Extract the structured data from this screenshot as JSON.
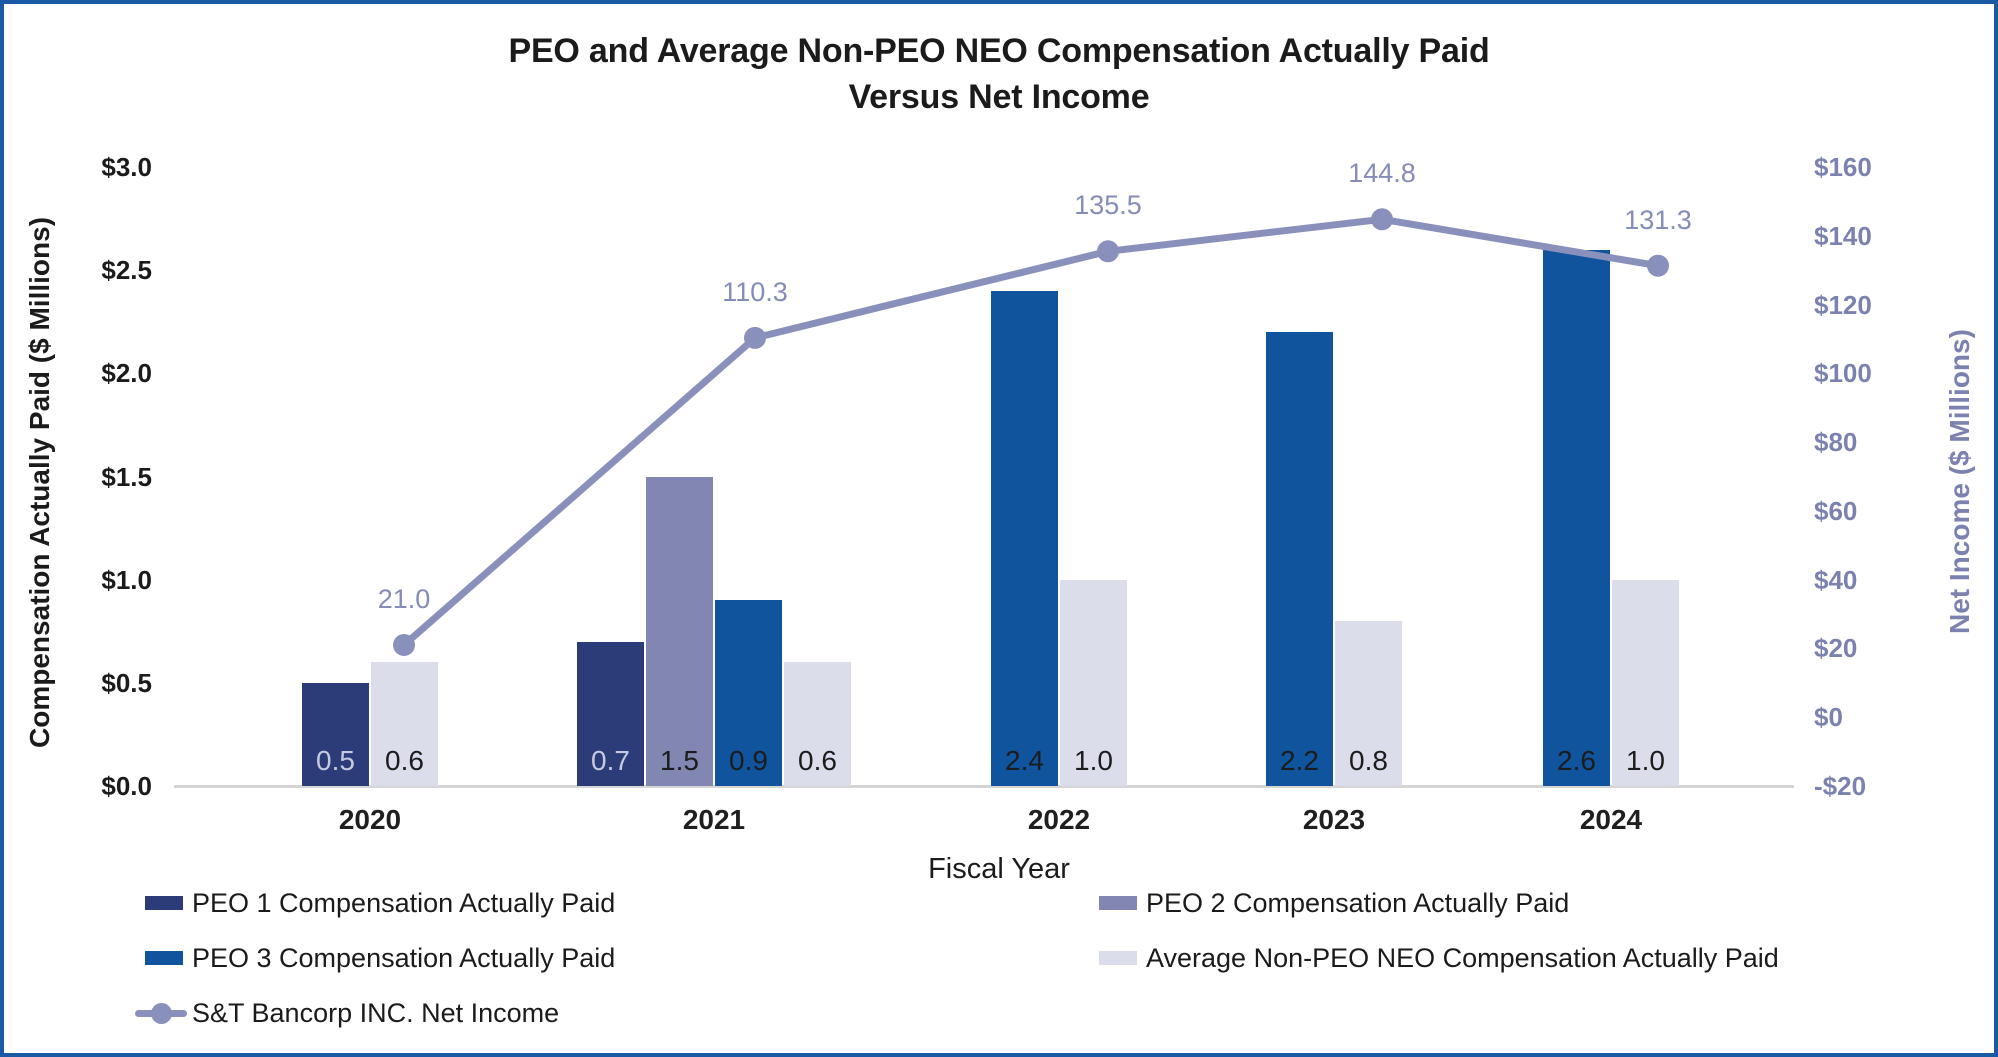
{
  "title": {
    "line1": "PEO and Average Non-PEO NEO Compensation Actually Paid",
    "line2": "Versus Net Income"
  },
  "chart_data": {
    "type": "combo-bar-line",
    "categories": [
      "2020",
      "2021",
      "2022",
      "2023",
      "2024"
    ],
    "xlabel": "Fiscal Year",
    "left_axis": {
      "title": "Compensation Actually Paid ($ Millions)",
      "min": 0.0,
      "max": 3.0,
      "ticks": [
        {
          "label": "$3.0",
          "value": 3.0
        },
        {
          "label": "$2.5",
          "value": 2.5
        },
        {
          "label": "$2.0",
          "value": 2.0
        },
        {
          "label": "$1.5",
          "value": 1.5
        },
        {
          "label": "$1.0",
          "value": 1.0
        },
        {
          "label": "$0.5",
          "value": 0.5
        },
        {
          "label": "$0.0",
          "value": 0.0
        }
      ]
    },
    "right_axis": {
      "title": "Net Income ($ Millions)",
      "min": -20,
      "max": 160,
      "ticks": [
        {
          "label": "$160",
          "value": 160
        },
        {
          "label": "$140",
          "value": 140
        },
        {
          "label": "$120",
          "value": 120
        },
        {
          "label": "$100",
          "value": 100
        },
        {
          "label": "$80",
          "value": 80
        },
        {
          "label": "$60",
          "value": 60
        },
        {
          "label": "$40",
          "value": 40
        },
        {
          "label": "$20",
          "value": 20
        },
        {
          "label": "$0",
          "value": 0
        },
        {
          "label": "-$20",
          "value": -20
        }
      ]
    },
    "bar_series": [
      {
        "name": "PEO 1 Compensation Actually Paid",
        "color": "#2B3C78",
        "label_color": "#C5CADF",
        "values": [
          0.5,
          0.7,
          null,
          null,
          null
        ]
      },
      {
        "name": "PEO 2 Compensation Actually Paid",
        "color": "#8186B2",
        "label_color": "#1c1c1c",
        "values": [
          null,
          1.5,
          null,
          null,
          null
        ]
      },
      {
        "name": "PEO 3 Compensation Actually Paid",
        "color": "#0F549C",
        "label_color": "#1c1c1c",
        "values": [
          null,
          0.9,
          2.4,
          2.2,
          2.6
        ]
      },
      {
        "name": "Average Non-PEO NEO Compensation Actually Paid",
        "color": "#DBDDEA",
        "label_color": "#1c1c1c",
        "values": [
          0.6,
          0.6,
          1.0,
          0.8,
          1.0
        ]
      }
    ],
    "line_series": {
      "name": "S&T Bancorp INC. Net Income",
      "color": "#8A90BC",
      "values": [
        21.0,
        110.3,
        135.5,
        144.8,
        131.3
      ]
    }
  }
}
